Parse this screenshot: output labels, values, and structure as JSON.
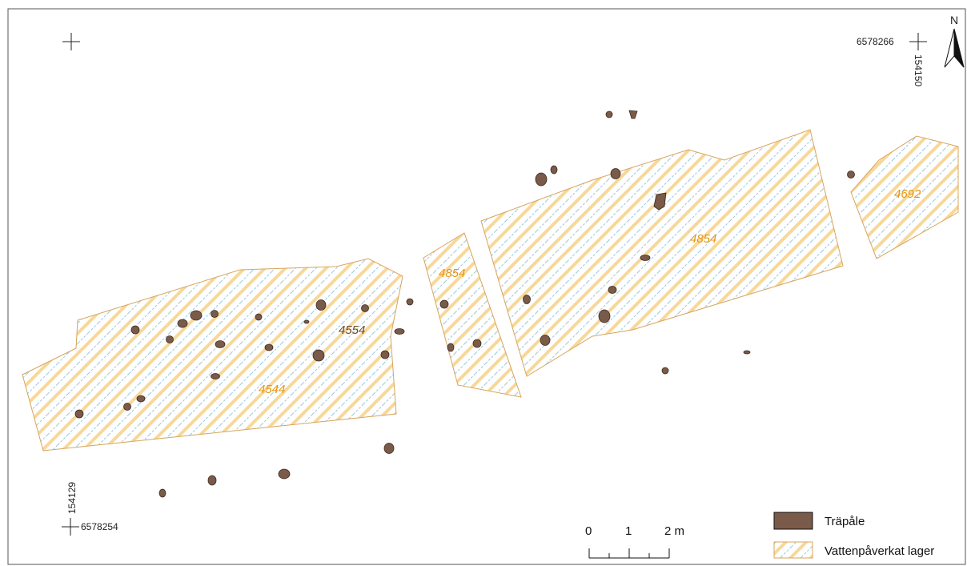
{
  "map": {
    "north_label": "N",
    "coordinates": {
      "top_right_northing": "6578266",
      "top_right_easting": "154150",
      "bottom_left_northing": "6578254",
      "bottom_left_easting": "154129"
    },
    "layer_labels": {
      "l4544": "4544",
      "l4554": "4554",
      "l4854_small": "4854",
      "l4854_large": "4854",
      "l4692": "4692"
    },
    "scale_bar": {
      "t0": "0",
      "t1": "1",
      "t2": "2 m"
    },
    "legend": {
      "post_label": "Träpåle",
      "layer_label": "Vattenpåverkat lager"
    },
    "colors": {
      "post_fill": "#7a5a48",
      "hatch_yellow": "#f7d89a",
      "hatch_blue": "#9cc6de",
      "polygon_outline": "#d8a45a",
      "label_orange": "#e8950f",
      "label_brown": "#6e4a1e"
    }
  }
}
